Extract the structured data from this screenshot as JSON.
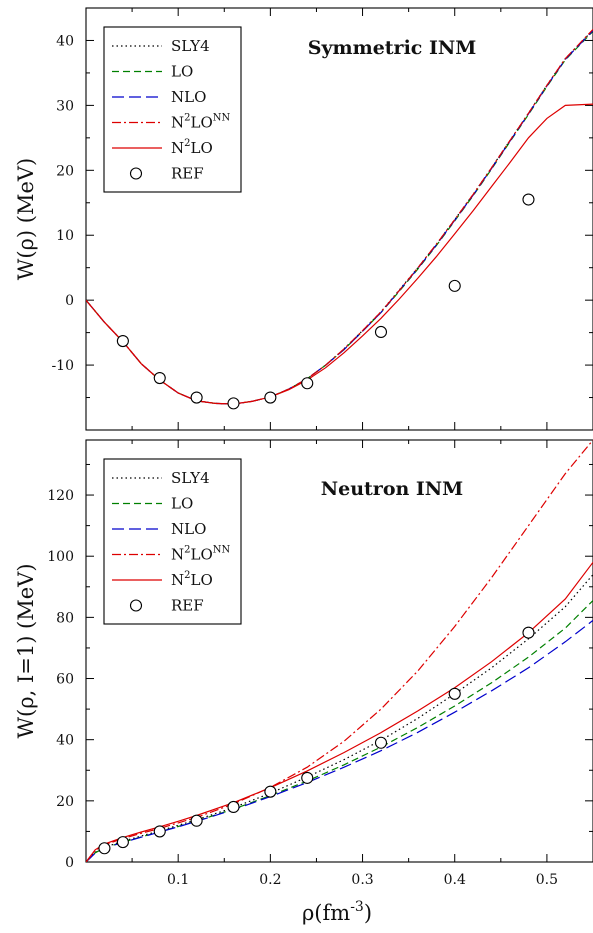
{
  "figure": {
    "xlabel": "ρ(fm⁻³)",
    "xlabel_base": "ρ(fm",
    "xlabel_sup": "-3",
    "xlabel_close": ")"
  },
  "chart_data": [
    {
      "type": "line",
      "title": "Symmetric INM",
      "ylabel": "W(ρ) (MeV)",
      "xlim": [
        0,
        0.55
      ],
      "ylim": [
        -20,
        45
      ],
      "xticks": [
        0.1,
        0.2,
        0.3,
        0.4,
        0.5
      ],
      "xtick_labels": [
        "",
        "",
        "",
        "",
        ""
      ],
      "yticks": [
        -10,
        0,
        10,
        20,
        30,
        40
      ],
      "ytick_labels": [
        "-10",
        "0",
        "10",
        "20",
        "30",
        "40"
      ],
      "grid": false,
      "legend_position": "top-left",
      "legend": [
        {
          "name": "SLY4",
          "sup": "",
          "tail": "",
          "color": "#000000",
          "dash": "1.5,3",
          "kind": "line"
        },
        {
          "name": "LO",
          "sup": "",
          "tail": "",
          "color": "#008000",
          "dash": "7,4",
          "kind": "line"
        },
        {
          "name": "NLO",
          "sup": "",
          "tail": "",
          "color": "#0000cc",
          "dash": "12,5",
          "kind": "line"
        },
        {
          "name": "N",
          "sup": "2",
          "tail": "LO",
          "sup2": "NN",
          "color": "#dd0000",
          "dash": "9,3,2,3",
          "kind": "line"
        },
        {
          "name": "N",
          "sup": "2",
          "tail": "LO",
          "sup2": "",
          "color": "#dd0000",
          "dash": "",
          "kind": "line"
        },
        {
          "name": "REF",
          "sup": "",
          "tail": "",
          "color": "#000000",
          "dash": "",
          "kind": "marker"
        }
      ],
      "series": [
        {
          "name": "SLY4",
          "color": "#000000",
          "dash": "1.5,3",
          "x": [
            0,
            0.02,
            0.04,
            0.06,
            0.08,
            0.1,
            0.12,
            0.14,
            0.16,
            0.18,
            0.2,
            0.22,
            0.24,
            0.26,
            0.28,
            0.3,
            0.32,
            0.34,
            0.36,
            0.38,
            0.4,
            0.42,
            0.44,
            0.46,
            0.48,
            0.5,
            0.52,
            0.55
          ],
          "y": [
            0,
            -3.4,
            -6.4,
            -9.8,
            -12.3,
            -14.3,
            -15.5,
            -15.9,
            -16.0,
            -15.6,
            -14.9,
            -13.7,
            -12.1,
            -10.0,
            -7.5,
            -4.7,
            -1.8,
            1.6,
            5.0,
            8.6,
            12.4,
            16.3,
            20.4,
            24.6,
            28.8,
            33.1,
            37.2,
            41.6
          ]
        },
        {
          "name": "LO",
          "color": "#008000",
          "dash": "7,4",
          "x": [
            0,
            0.02,
            0.04,
            0.06,
            0.08,
            0.1,
            0.12,
            0.14,
            0.16,
            0.18,
            0.2,
            0.22,
            0.24,
            0.26,
            0.28,
            0.3,
            0.32,
            0.34,
            0.36,
            0.38,
            0.4,
            0.42,
            0.44,
            0.46,
            0.48,
            0.5,
            0.52,
            0.55
          ],
          "y": [
            0,
            -3.4,
            -6.4,
            -9.8,
            -12.3,
            -14.3,
            -15.5,
            -15.9,
            -16.0,
            -15.6,
            -14.9,
            -13.7,
            -12.1,
            -10.0,
            -7.6,
            -4.8,
            -1.9,
            1.4,
            4.8,
            8.4,
            12.2,
            16.1,
            20.2,
            24.4,
            28.6,
            32.9,
            37.0,
            41.4
          ]
        },
        {
          "name": "NLO",
          "color": "#0000cc",
          "dash": "12,5",
          "x": [
            0,
            0.02,
            0.04,
            0.06,
            0.08,
            0.1,
            0.12,
            0.14,
            0.16,
            0.18,
            0.2,
            0.22,
            0.24,
            0.26,
            0.28,
            0.3,
            0.32,
            0.34,
            0.36,
            0.38,
            0.4,
            0.42,
            0.44,
            0.46,
            0.48,
            0.5,
            0.52,
            0.55
          ],
          "y": [
            0,
            -3.4,
            -6.4,
            -9.8,
            -12.3,
            -14.3,
            -15.5,
            -15.9,
            -16.0,
            -15.6,
            -14.9,
            -13.7,
            -12.1,
            -10.0,
            -7.6,
            -4.8,
            -1.9,
            1.5,
            4.9,
            8.5,
            12.3,
            16.2,
            20.3,
            24.5,
            28.7,
            33.0,
            37.1,
            41.5
          ]
        },
        {
          "name": "N2LO-NN",
          "color": "#dd0000",
          "dash": "9,3,2,3",
          "x": [
            0,
            0.02,
            0.04,
            0.06,
            0.08,
            0.1,
            0.12,
            0.14,
            0.16,
            0.18,
            0.2,
            0.22,
            0.24,
            0.26,
            0.28,
            0.3,
            0.32,
            0.34,
            0.36,
            0.38,
            0.4,
            0.42,
            0.44,
            0.46,
            0.48,
            0.5,
            0.52,
            0.55
          ],
          "y": [
            0,
            -3.4,
            -6.4,
            -9.8,
            -12.3,
            -14.3,
            -15.5,
            -15.9,
            -16.0,
            -15.6,
            -14.9,
            -13.7,
            -12.1,
            -10.0,
            -7.5,
            -4.7,
            -1.8,
            1.5,
            5.0,
            8.6,
            12.4,
            16.3,
            20.4,
            24.6,
            28.8,
            33.1,
            37.2,
            41.7
          ]
        },
        {
          "name": "N2LO",
          "color": "#dd0000",
          "dash": "",
          "x": [
            0,
            0.02,
            0.04,
            0.06,
            0.08,
            0.1,
            0.12,
            0.14,
            0.16,
            0.18,
            0.2,
            0.22,
            0.24,
            0.26,
            0.28,
            0.3,
            0.32,
            0.34,
            0.36,
            0.38,
            0.4,
            0.42,
            0.44,
            0.46,
            0.48,
            0.5,
            0.52,
            0.55
          ],
          "y": [
            0,
            -3.4,
            -6.4,
            -9.8,
            -12.3,
            -14.3,
            -15.5,
            -15.9,
            -16.0,
            -15.6,
            -14.9,
            -13.8,
            -12.3,
            -10.4,
            -8.1,
            -5.5,
            -2.8,
            0.2,
            3.4,
            6.7,
            10.2,
            13.8,
            17.5,
            21.2,
            25.0,
            28.0,
            30.0,
            30.2
          ]
        }
      ],
      "ref_points": {
        "x": [
          0.04,
          0.08,
          0.12,
          0.16,
          0.2,
          0.24,
          0.32,
          0.4,
          0.48
        ],
        "y": [
          -6.3,
          -12.0,
          -15.0,
          -15.9,
          -15.0,
          -12.8,
          -4.9,
          2.2,
          15.5
        ]
      }
    },
    {
      "type": "line",
      "title": "Neutron INM",
      "ylabel": "W(ρ, I=1) (MeV)",
      "xlim": [
        0,
        0.55
      ],
      "ylim": [
        0,
        138
      ],
      "xticks": [
        0.1,
        0.2,
        0.3,
        0.4,
        0.5
      ],
      "xtick_labels": [
        "0.1",
        "0.2",
        "0.3",
        "0.4",
        "0.5"
      ],
      "yticks": [
        0,
        20,
        40,
        60,
        80,
        100,
        120
      ],
      "ytick_labels": [
        "0",
        "20",
        "40",
        "60",
        "80",
        "100",
        "120"
      ],
      "grid": false,
      "legend_position": "top-left",
      "legend": [
        {
          "name": "SLY4",
          "sup": "",
          "tail": "",
          "color": "#000000",
          "dash": "1.5,3",
          "kind": "line"
        },
        {
          "name": "LO",
          "sup": "",
          "tail": "",
          "color": "#008000",
          "dash": "7,4",
          "kind": "line"
        },
        {
          "name": "NLO",
          "sup": "",
          "tail": "",
          "color": "#0000cc",
          "dash": "12,5",
          "kind": "line"
        },
        {
          "name": "N",
          "sup": "2",
          "tail": "LO",
          "sup2": "NN",
          "color": "#dd0000",
          "dash": "9,3,2,3",
          "kind": "line"
        },
        {
          "name": "N",
          "sup": "2",
          "tail": "LO",
          "sup2": "",
          "color": "#dd0000",
          "dash": "",
          "kind": "line"
        },
        {
          "name": "REF",
          "sup": "",
          "tail": "",
          "color": "#000000",
          "dash": "",
          "kind": "marker"
        }
      ],
      "series": [
        {
          "name": "SLY4",
          "color": "#000000",
          "dash": "1.5,3",
          "x": [
            0,
            0.01,
            0.02,
            0.04,
            0.06,
            0.08,
            0.1,
            0.12,
            0.16,
            0.2,
            0.24,
            0.28,
            0.32,
            0.36,
            0.4,
            0.44,
            0.48,
            0.52,
            0.55
          ],
          "y": [
            0,
            3.2,
            4.8,
            6.8,
            8.5,
            10.2,
            12.0,
            13.8,
            17.8,
            22.5,
            27.8,
            33.5,
            39.8,
            47.0,
            55.0,
            63.5,
            73.0,
            83.5,
            94.0
          ]
        },
        {
          "name": "LO",
          "color": "#008000",
          "dash": "7,4",
          "x": [
            0,
            0.01,
            0.02,
            0.04,
            0.06,
            0.08,
            0.1,
            0.12,
            0.16,
            0.2,
            0.24,
            0.28,
            0.32,
            0.36,
            0.4,
            0.44,
            0.48,
            0.52,
            0.55
          ],
          "y": [
            0,
            3.0,
            4.6,
            6.5,
            8.2,
            9.9,
            11.6,
            13.4,
            17.3,
            21.7,
            26.5,
            31.8,
            37.6,
            44.0,
            51.0,
            58.6,
            67.0,
            76.5,
            85.5
          ]
        },
        {
          "name": "NLO",
          "color": "#0000cc",
          "dash": "12,5",
          "x": [
            0,
            0.01,
            0.02,
            0.04,
            0.06,
            0.08,
            0.1,
            0.12,
            0.16,
            0.2,
            0.24,
            0.28,
            0.32,
            0.36,
            0.4,
            0.44,
            0.48,
            0.52,
            0.55
          ],
          "y": [
            0,
            2.9,
            4.5,
            6.4,
            8.1,
            9.8,
            11.5,
            13.3,
            17.1,
            21.4,
            26.0,
            31.0,
            36.4,
            42.4,
            49.0,
            56.0,
            63.5,
            72.0,
            79.0
          ]
        },
        {
          "name": "N2LO-NN",
          "color": "#dd0000",
          "dash": "9,3,2,3",
          "x": [
            0,
            0.01,
            0.02,
            0.04,
            0.06,
            0.08,
            0.1,
            0.12,
            0.16,
            0.2,
            0.24,
            0.28,
            0.32,
            0.36,
            0.4,
            0.44,
            0.48,
            0.52,
            0.55
          ],
          "y": [
            0,
            3.8,
            5.6,
            7.7,
            9.4,
            11.0,
            12.8,
            14.6,
            19.0,
            24.4,
            31.0,
            39.5,
            50.0,
            62.5,
            77.0,
            93.0,
            110.0,
            127.0,
            138.0
          ]
        },
        {
          "name": "N2LO",
          "color": "#dd0000",
          "dash": "",
          "x": [
            0,
            0.01,
            0.02,
            0.04,
            0.06,
            0.08,
            0.1,
            0.12,
            0.16,
            0.2,
            0.24,
            0.28,
            0.32,
            0.36,
            0.4,
            0.44,
            0.48,
            0.52,
            0.55
          ],
          "y": [
            0,
            4.0,
            5.9,
            8.0,
            9.8,
            11.5,
            13.3,
            15.2,
            19.4,
            24.3,
            29.8,
            35.8,
            42.3,
            49.4,
            57.0,
            65.5,
            75.0,
            86.0,
            98.0
          ]
        }
      ],
      "ref_points": {
        "x": [
          0.02,
          0.04,
          0.08,
          0.12,
          0.16,
          0.2,
          0.24,
          0.32,
          0.4,
          0.48
        ],
        "y": [
          4.5,
          6.5,
          10.0,
          13.5,
          18.0,
          23.0,
          27.5,
          39.0,
          55.0,
          75.0
        ]
      }
    }
  ]
}
